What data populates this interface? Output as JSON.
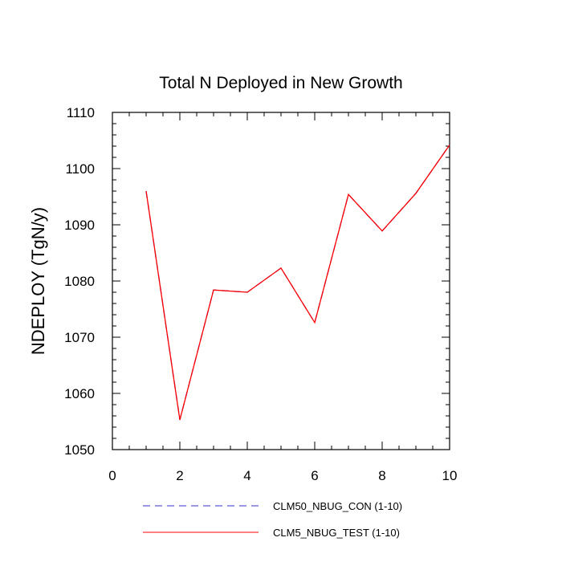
{
  "chart_data": {
    "type": "line",
    "title": "Total N Deployed in New Growth",
    "xlabel": "",
    "ylabel": "NDEPLOY  (TgN/y)",
    "xlim": [
      0,
      10
    ],
    "ylim": [
      1050,
      1110
    ],
    "x_ticks": [
      "0",
      "2",
      "4",
      "6",
      "8",
      "10"
    ],
    "y_ticks": [
      "1050",
      "1060",
      "1070",
      "1080",
      "1090",
      "1100",
      "1110"
    ],
    "grid": false,
    "legend_position": "bottom",
    "x": [
      1,
      2,
      3,
      4,
      5,
      6,
      7,
      8,
      9,
      10
    ],
    "series": [
      {
        "name": "CLM50_NBUG_CON (1-10)",
        "color": "#3333cc",
        "dash": "dashed",
        "values": [
          1096.0,
          1055.3,
          1078.4,
          1078.0,
          1082.3,
          1072.6,
          1095.4,
          1088.9,
          1095.6,
          1104.2
        ]
      },
      {
        "name": "CLM5_NBUG_TEST (1-10)",
        "color": "#ff0000",
        "dash": "solid",
        "values": [
          1096.0,
          1055.3,
          1078.4,
          1078.0,
          1082.3,
          1072.6,
          1095.4,
          1088.9,
          1095.6,
          1104.2
        ]
      }
    ]
  }
}
